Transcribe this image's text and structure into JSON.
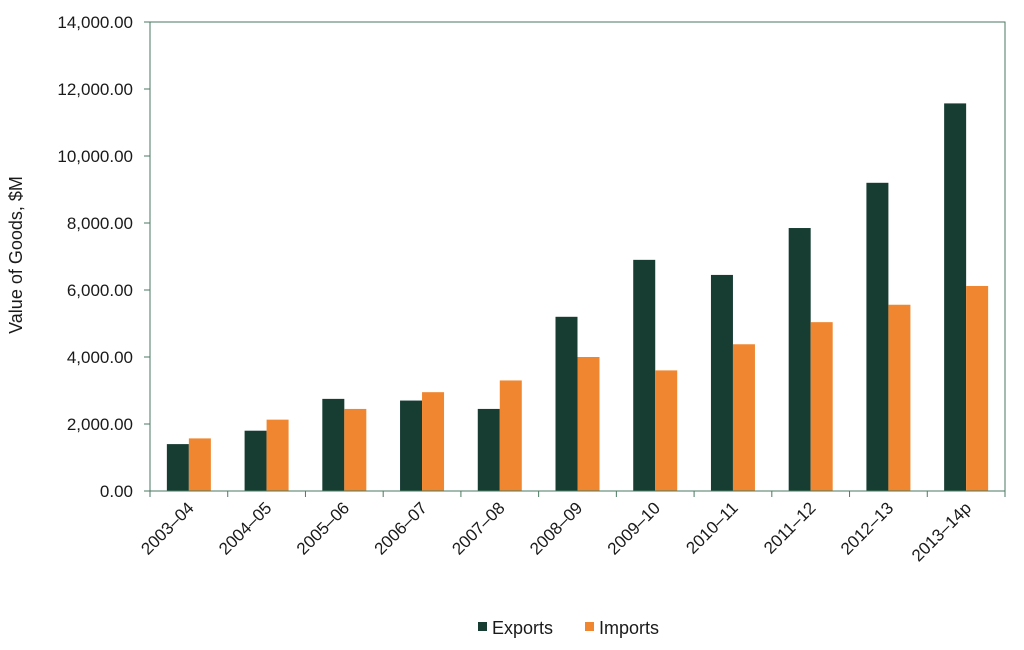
{
  "chart_data": {
    "type": "bar",
    "title": "",
    "xlabel": "",
    "ylabel": "Value of Goods, $M",
    "ylim": [
      0,
      14000
    ],
    "yticks": [
      "0.00",
      "2,000.00",
      "4,000.00",
      "6,000.00",
      "8,000.00",
      "10,000.00",
      "12,000.00",
      "14,000.00"
    ],
    "categories": [
      "2003–04",
      "2004–05",
      "2005–06",
      "2006–07",
      "2007–08",
      "2008–09",
      "2009–10",
      "2010–11",
      "2011–12",
      "2012–13",
      "2013–14p"
    ],
    "series": [
      {
        "name": "Exports",
        "color": "#173d33",
        "values": [
          1400,
          1800,
          2750,
          2700,
          2450,
          5200,
          6900,
          6450,
          7850,
          9200,
          11570
        ]
      },
      {
        "name": "Imports",
        "color": "#f0862f",
        "values": [
          1570,
          2130,
          2450,
          2950,
          3300,
          4000,
          3600,
          4380,
          5040,
          5560,
          6120
        ]
      }
    ],
    "grid": false,
    "legend_position": "bottom"
  }
}
